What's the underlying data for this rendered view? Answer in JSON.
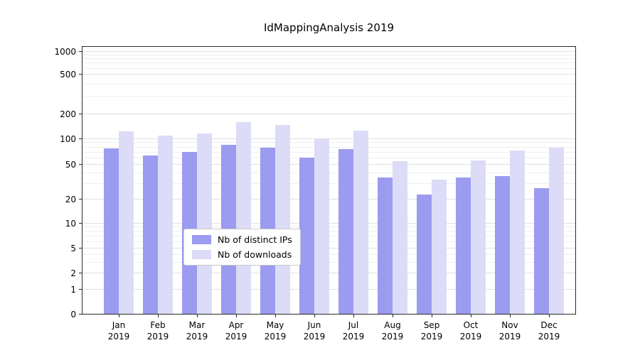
{
  "chart_data": {
    "type": "bar",
    "title": "IdMappingAnalysis 2019",
    "xlabel": "",
    "ylabel": "",
    "yscale": "log-like",
    "ylim": [
      0,
      1000
    ],
    "grid": true,
    "yticks": [
      0,
      1,
      2,
      5,
      10,
      20,
      50,
      100,
      200,
      500,
      1000
    ],
    "categories": [
      "Jan",
      "Feb",
      "Mar",
      "Apr",
      "May",
      "Jun",
      "Jul",
      "Aug",
      "Sep",
      "Oct",
      "Nov",
      "Dec"
    ],
    "year_label": "2019",
    "series": [
      {
        "name": "Nb of distinct IPs",
        "color": "#9b9bef",
        "values": [
          78,
          64,
          71,
          86,
          79,
          61,
          77,
          36,
          23,
          36,
          37,
          27
        ]
      },
      {
        "name": "Nb of downloads",
        "color": "#dcdcf8",
        "values": [
          124,
          110,
          117,
          160,
          150,
          100,
          127,
          55,
          34,
          56,
          74,
          80
        ]
      }
    ],
    "legend": {
      "position": "inside-bottom-center",
      "labels": [
        "Nb of distinct IPs",
        "Nb of downloads"
      ]
    }
  }
}
